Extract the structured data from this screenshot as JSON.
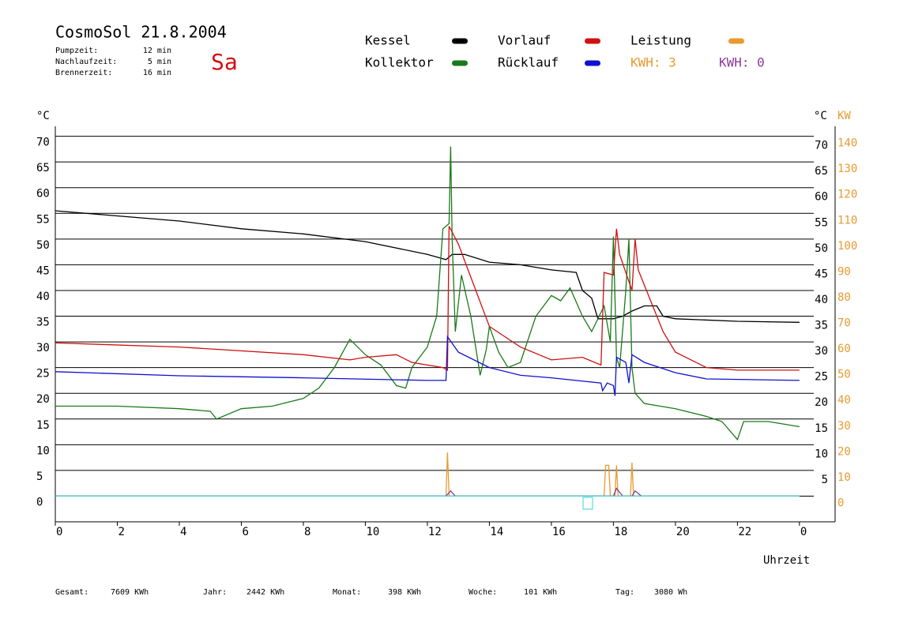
{
  "chart_data": {
    "type": "line",
    "title": "CosmoSol 21.8.2004",
    "day": "Sa",
    "info": [
      {
        "label": "Pumpzeit:",
        "value": "12 min"
      },
      {
        "label": "Nachlaufzeit:",
        "value": "5 min"
      },
      {
        "label": "Brennerzeit:",
        "value": "16 min"
      }
    ],
    "kwh_labels": [
      {
        "text": "KWH: 3",
        "color": "#e89a30"
      },
      {
        "text": "KWH: 0",
        "color": "#8a3a9a"
      }
    ],
    "y_unit": "°C",
    "y2_unit_left": "°C",
    "y2_unit": "KW",
    "x_label": "Uhrzeit",
    "xlim": [
      0,
      25.15
    ],
    "xticks": [
      0,
      2,
      4,
      6,
      8,
      10,
      12,
      14,
      16,
      18,
      20,
      22,
      {
        "value": 24,
        "label": "0"
      }
    ],
    "ylim": [
      -5,
      75
    ],
    "yticks": [
      0,
      5,
      10,
      15,
      20,
      25,
      30,
      35,
      40,
      45,
      50,
      55,
      60,
      65,
      70
    ],
    "yticks_right": [
      5,
      10,
      15,
      20,
      25,
      30,
      35,
      40,
      45,
      50,
      55,
      60,
      65,
      70
    ],
    "y2lim": [
      -10,
      150
    ],
    "y2ticks": [
      0,
      10,
      20,
      30,
      40,
      50,
      60,
      70,
      80,
      90,
      100,
      110,
      120,
      130,
      140
    ],
    "grid": true,
    "series": [
      {
        "name": "Kessel",
        "color": "#000000",
        "x": [
          0,
          2,
          4,
          6,
          8,
          10,
          12,
          12.6,
          12.8,
          13.2,
          14,
          15,
          16,
          16.8,
          17,
          17.3,
          17.5,
          18,
          18.3,
          18.6,
          19,
          19.4,
          19.6,
          20,
          22,
          24
        ],
        "values": [
          55.5,
          54.5,
          53.5,
          52,
          51,
          49.5,
          47,
          46,
          47,
          47,
          45.5,
          45,
          44,
          43.5,
          40,
          38.5,
          34.5,
          34.5,
          35,
          36,
          37,
          37,
          35,
          34.5,
          34,
          33.8
        ]
      },
      {
        "name": "Kollektor",
        "color": "#1a7a1a",
        "x": [
          0,
          2,
          4,
          5,
          5.2,
          6,
          7,
          8,
          8.5,
          9,
          9.5,
          10,
          10.5,
          11,
          11.3,
          11.5,
          12,
          12.3,
          12.5,
          12.7,
          12.75,
          12.8,
          12.9,
          13.1,
          13.4,
          13.7,
          13.9,
          14,
          14.3,
          14.6,
          15,
          15.5,
          16,
          16.3,
          16.6,
          17,
          17.3,
          17.7,
          17.9,
          18,
          18.1,
          18.2,
          18.4,
          18.5,
          18.6,
          18.7,
          19,
          20,
          21,
          21.5,
          22,
          22.2,
          23,
          24
        ],
        "values": [
          17.5,
          17.5,
          17,
          16.5,
          15,
          17,
          17.5,
          19,
          21,
          25,
          30.5,
          27.5,
          25.5,
          21.5,
          21,
          25,
          29,
          35,
          52,
          53,
          68,
          50,
          32,
          43,
          35,
          23.5,
          28.5,
          33,
          28,
          25,
          26,
          35,
          39,
          38,
          40.5,
          35,
          32,
          37,
          30,
          50.5,
          27,
          25,
          40,
          50,
          25,
          20,
          18,
          17,
          15.5,
          14.5,
          11,
          14.5,
          14.5,
          13.5
        ]
      },
      {
        "name": "Vorlauf",
        "color": "#d01010",
        "x": [
          0,
          4,
          8,
          9.5,
          10,
          11,
          11.5,
          12.5,
          12.65,
          12.7,
          13,
          13.5,
          14,
          15,
          16,
          17,
          17.6,
          17.7,
          18,
          18.1,
          18.2,
          18.6,
          18.7,
          18.8,
          19.2,
          19.6,
          20,
          21,
          22,
          24
        ],
        "values": [
          29.8,
          29,
          27.5,
          26.5,
          27,
          27.5,
          26,
          25,
          24.5,
          52.5,
          49,
          41,
          33,
          29,
          26.5,
          27,
          25.5,
          43.5,
          43,
          52,
          47,
          40,
          50,
          44,
          38,
          32,
          28,
          25,
          24.5,
          24.5
        ]
      },
      {
        "name": "Rücklauf",
        "color": "#1010d0",
        "x": [
          0,
          4,
          8,
          12,
          12.6,
          12.65,
          13,
          14,
          15,
          16,
          17.6,
          17.65,
          17.8,
          18,
          18.05,
          18.1,
          18.4,
          18.5,
          18.6,
          19,
          20,
          21,
          24
        ],
        "values": [
          24.2,
          23.4,
          23,
          22.5,
          22.5,
          31,
          28,
          25,
          23.5,
          23,
          22,
          20.5,
          22,
          21.5,
          19.5,
          27,
          26,
          22,
          27.5,
          26,
          24,
          22.8,
          22.5
        ]
      },
      {
        "name": "Leistung",
        "color": "#e89a30",
        "axis": "y2",
        "x": [
          0,
          12.6,
          12.65,
          12.7,
          17.7,
          17.75,
          17.85,
          17.9,
          18.05,
          18.1,
          18.15,
          18.55,
          18.6,
          18.65,
          24
        ],
        "values": [
          0,
          0,
          17,
          0,
          0,
          12,
          12,
          0,
          0,
          12,
          0,
          0,
          13,
          0,
          0
        ]
      },
      {
        "color": "#8a3a9a",
        "axis": "y2",
        "x": [
          0,
          12.6,
          12.75,
          12.9,
          18,
          18.1,
          18.3,
          18.6,
          18.7,
          18.9,
          24
        ],
        "values": [
          0,
          0,
          2,
          0,
          0,
          3,
          0,
          0,
          2,
          0,
          0
        ]
      },
      {
        "color": "#40d0d0",
        "x": [
          0,
          24
        ],
        "values": [
          0,
          0
        ]
      }
    ],
    "legend_order": [
      0,
      2,
      4,
      1,
      3
    ],
    "footer": [
      {
        "label": "Gesamt:",
        "value": "7609 KWh"
      },
      {
        "label": "Jahr:",
        "value": "2442 KWh"
      },
      {
        "label": "Monat:",
        "value": "398 KWh"
      },
      {
        "label": "Woche:",
        "value": "101 KWh"
      },
      {
        "label": "Tag:",
        "value": "3080 Wh"
      }
    ]
  }
}
